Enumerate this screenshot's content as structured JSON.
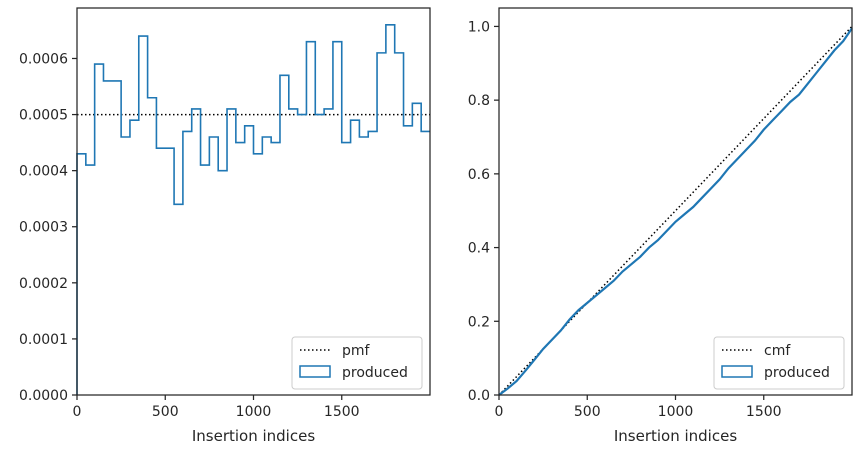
{
  "chart_data": [
    {
      "type": "histogram-step",
      "xlabel": "Insertion indices",
      "ylabel": "",
      "xlim": [
        0,
        2000
      ],
      "ylim": [
        0,
        0.00069
      ],
      "xticks": [
        0,
        500,
        1000,
        1500
      ],
      "xtick_labels": [
        "0",
        "500",
        "1000",
        "1500"
      ],
      "yticks": [
        0,
        0.0001,
        0.0002,
        0.0003,
        0.0004,
        0.0005,
        0.0006
      ],
      "ytick_labels": [
        "0.0000",
        "0.0001",
        "0.0002",
        "0.0003",
        "0.0004",
        "0.0005",
        "0.0006"
      ],
      "legend_position": "lower-right",
      "grid": false,
      "series": [
        {
          "name": "pmf",
          "style": "dotted",
          "color": "#000000",
          "y": 0.0005
        },
        {
          "name": "produced",
          "style": "step",
          "color": "#1f77b4",
          "bin_edges": [
            0,
            50,
            100,
            150,
            200,
            250,
            300,
            350,
            400,
            450,
            500,
            550,
            600,
            650,
            700,
            750,
            800,
            850,
            900,
            950,
            1000,
            1050,
            1100,
            1150,
            1200,
            1250,
            1300,
            1350,
            1400,
            1450,
            1500,
            1550,
            1600,
            1650,
            1700,
            1750,
            1800,
            1850,
            1900,
            1950,
            2000
          ],
          "values": [
            0.00043,
            0.00041,
            0.00059,
            0.00056,
            0.00056,
            0.00046,
            0.00049,
            0.00064,
            0.00053,
            0.00044,
            0.00044,
            0.00034,
            0.00047,
            0.00051,
            0.00041,
            0.00046,
            0.0004,
            0.00051,
            0.00045,
            0.00048,
            0.00043,
            0.00046,
            0.00045,
            0.00057,
            0.00051,
            0.0005,
            0.00063,
            0.0005,
            0.00051,
            0.00063,
            0.00045,
            0.00049,
            0.00046,
            0.00047,
            0.00061,
            0.00066,
            0.00061,
            0.00048,
            0.00052,
            0.00047
          ]
        }
      ]
    },
    {
      "type": "line",
      "xlabel": "Insertion indices",
      "ylabel": "",
      "xlim": [
        0,
        2000
      ],
      "ylim": [
        0,
        1.05
      ],
      "xticks": [
        0,
        500,
        1000,
        1500
      ],
      "xtick_labels": [
        "0",
        "500",
        "1000",
        "1500"
      ],
      "yticks": [
        0,
        0.2,
        0.4,
        0.6,
        0.8,
        1.0
      ],
      "ytick_labels": [
        "0.0",
        "0.2",
        "0.4",
        "0.6",
        "0.8",
        "1.0"
      ],
      "legend_position": "lower-right",
      "grid": false,
      "series": [
        {
          "name": "cmf",
          "style": "dotted",
          "color": "#000000",
          "x": [
            0,
            2000
          ],
          "y": [
            0,
            1.0
          ]
        },
        {
          "name": "produced",
          "style": "step",
          "color": "#1f77b4",
          "x": [
            0,
            50,
            100,
            150,
            200,
            250,
            300,
            350,
            400,
            450,
            500,
            550,
            600,
            650,
            700,
            750,
            800,
            850,
            900,
            950,
            1000,
            1050,
            1100,
            1150,
            1200,
            1250,
            1300,
            1350,
            1400,
            1450,
            1500,
            1550,
            1600,
            1650,
            1700,
            1750,
            1800,
            1850,
            1900,
            1950,
            2000
          ],
          "y": [
            0,
            0.018,
            0.038,
            0.066,
            0.095,
            0.125,
            0.15,
            0.175,
            0.205,
            0.23,
            0.25,
            0.27,
            0.29,
            0.31,
            0.335,
            0.355,
            0.375,
            0.4,
            0.42,
            0.445,
            0.47,
            0.49,
            0.51,
            0.535,
            0.56,
            0.585,
            0.615,
            0.64,
            0.665,
            0.69,
            0.72,
            0.745,
            0.77,
            0.795,
            0.815,
            0.845,
            0.875,
            0.905,
            0.935,
            0.96,
            0.995
          ]
        }
      ]
    }
  ]
}
